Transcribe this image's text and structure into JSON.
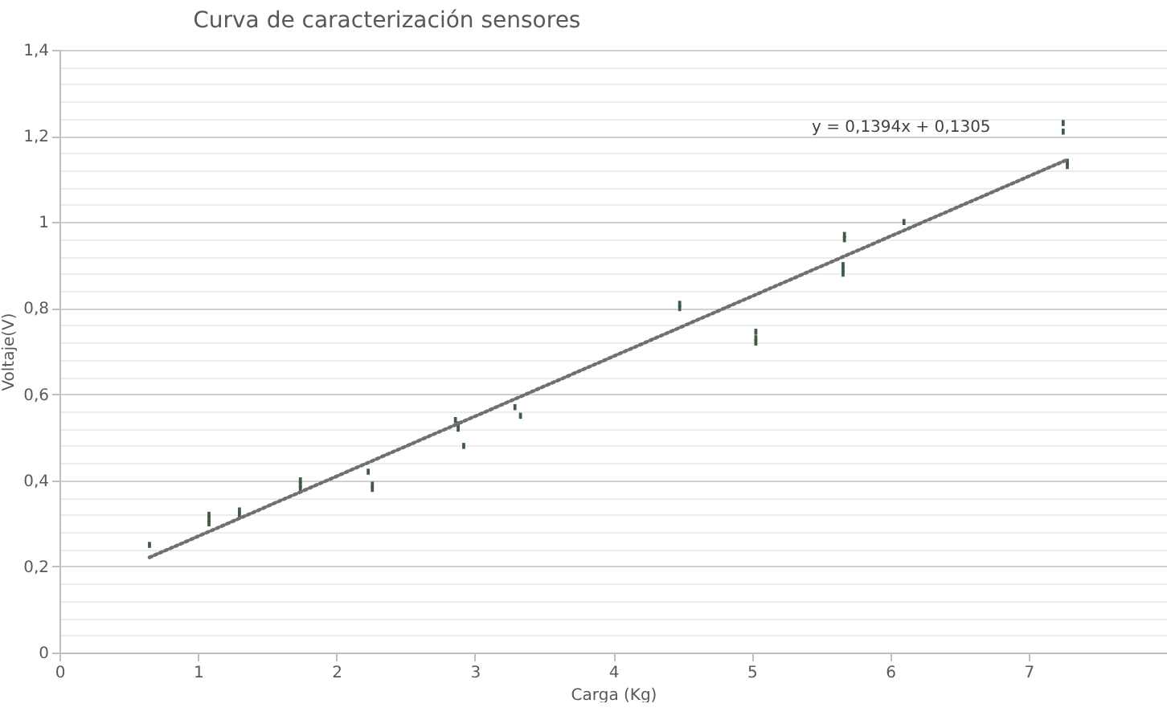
{
  "chart_data": {
    "type": "scatter",
    "title": "Curva de caracterización sensores",
    "xlabel": "Carga (Kg)",
    "ylabel": "Voltaje(V)",
    "x": [
      0.65,
      1.08,
      1.08,
      1.08,
      1.3,
      1.3,
      1.74,
      1.74,
      1.74,
      2.23,
      2.26,
      2.26,
      2.86,
      2.88,
      2.88,
      2.92,
      3.29,
      3.33,
      4.48,
      4.48,
      5.03,
      5.03,
      5.03,
      5.67,
      5.67,
      5.66,
      5.66,
      5.66,
      6.1,
      7.25,
      7.25,
      7.28,
      7.28
    ],
    "series": [
      {
        "color": "#3f5a45",
        "marker": "square",
        "values": [
          0.25,
          0.31,
          0.32,
          0.3,
          0.33,
          0.32,
          0.4,
          0.39,
          0.38,
          0.42,
          0.39,
          0.38,
          0.54,
          0.52,
          0.53,
          0.48,
          0.57,
          0.55,
          0.8,
          0.81,
          0.745,
          0.73,
          0.72,
          0.96,
          0.97,
          0.9,
          0.89,
          0.88,
          1.0,
          1.21,
          1.23,
          1.13,
          1.14
        ]
      },
      {
        "type": "line",
        "color": "#707070",
        "line_style": "dotted",
        "x": [
          0.65,
          7.28
        ],
        "values": [
          0.221,
          1.145
        ]
      }
    ],
    "annotations": [
      "y = 0,1394x + 0,1305"
    ],
    "xlim": [
      0,
      8
    ],
    "xticks": [
      0,
      1,
      2,
      3,
      4,
      5,
      6,
      7
    ],
    "ylim": [
      0,
      1.4
    ],
    "yticks": [
      0,
      {
        "value": 0.04,
        "label": null
      },
      {
        "value": 0.08,
        "label": null
      },
      {
        "value": 0.12,
        "label": null
      },
      {
        "value": 0.16,
        "label": null
      },
      {
        "value": 0.2,
        "label": "0,2"
      },
      {
        "value": 0.24,
        "label": null
      },
      {
        "value": 0.28,
        "label": null
      },
      {
        "value": 0.32,
        "label": null
      },
      {
        "value": 0.36,
        "label": null
      },
      {
        "value": 0.4,
        "label": "0,4"
      },
      {
        "value": 0.44,
        "label": null
      },
      {
        "value": 0.48,
        "label": null
      },
      {
        "value": 0.52,
        "label": null
      },
      {
        "value": 0.56,
        "label": null
      },
      {
        "value": 0.6,
        "label": "0,6"
      },
      {
        "value": 0.64,
        "label": null
      },
      {
        "value": 0.68,
        "label": null
      },
      {
        "value": 0.72,
        "label": null
      },
      {
        "value": 0.76,
        "label": null
      },
      {
        "value": 0.8,
        "label": "0,8"
      },
      {
        "value": 0.84,
        "label": null
      },
      {
        "value": 0.88,
        "label": null
      },
      {
        "value": 0.92,
        "label": null
      },
      {
        "value": 0.96,
        "label": null
      },
      1,
      {
        "value": 1.04,
        "label": null
      },
      {
        "value": 1.08,
        "label": null
      },
      {
        "value": 1.12,
        "label": null
      },
      {
        "value": 1.16,
        "label": null
      },
      {
        "value": 1.2,
        "label": "1,2"
      },
      {
        "value": 1.24,
        "label": null
      },
      {
        "value": 1.28,
        "label": null
      },
      {
        "value": 1.32,
        "label": null
      },
      {
        "value": 1.36,
        "label": null
      },
      {
        "value": 1.4,
        "label": "1,4"
      }
    ],
    "grid": "y"
  }
}
